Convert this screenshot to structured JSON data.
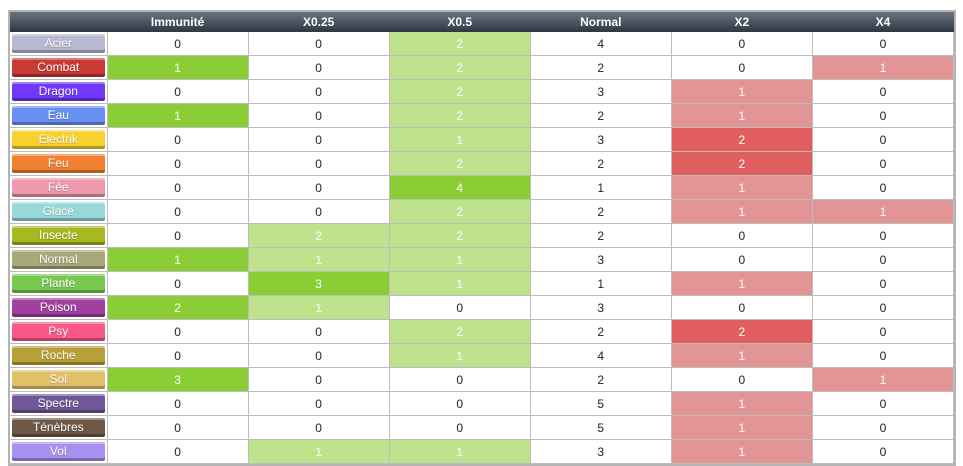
{
  "headers": [
    "",
    "Immunité",
    "X0.25",
    "X0.5",
    "Normal",
    "X2",
    "X4"
  ],
  "colors": {
    "white": "#ffffff",
    "light_green": "#bfe38c",
    "dark_green": "#8bcd35",
    "light_red": "#e29594",
    "dark_red": "#e05e5e"
  },
  "rows": [
    {
      "type": "Acier",
      "color": "#b8b8d0",
      "values": [
        "0",
        "0",
        "2",
        "4",
        "0",
        "0"
      ],
      "fills": [
        "white",
        "white",
        "light_green",
        "white",
        "white",
        "white"
      ]
    },
    {
      "type": "Combat",
      "color": "#c83a32",
      "values": [
        "1",
        "0",
        "2",
        "2",
        "0",
        "1"
      ],
      "fills": [
        "dark_green",
        "white",
        "light_green",
        "white",
        "white",
        "light_red"
      ]
    },
    {
      "type": "Dragon",
      "color": "#7038f8",
      "values": [
        "0",
        "0",
        "2",
        "3",
        "1",
        "0"
      ],
      "fills": [
        "white",
        "white",
        "light_green",
        "white",
        "light_red",
        "white"
      ]
    },
    {
      "type": "Eau",
      "color": "#6890f0",
      "values": [
        "1",
        "0",
        "2",
        "2",
        "1",
        "0"
      ],
      "fills": [
        "dark_green",
        "white",
        "light_green",
        "white",
        "light_red",
        "white"
      ]
    },
    {
      "type": "Electrik",
      "color": "#f8d030",
      "values": [
        "0",
        "0",
        "1",
        "3",
        "2",
        "0"
      ],
      "fills": [
        "white",
        "white",
        "light_green",
        "white",
        "dark_red",
        "white"
      ]
    },
    {
      "type": "Feu",
      "color": "#f08030",
      "values": [
        "0",
        "0",
        "2",
        "2",
        "2",
        "0"
      ],
      "fills": [
        "white",
        "white",
        "light_green",
        "white",
        "dark_red",
        "white"
      ]
    },
    {
      "type": "Fée",
      "color": "#ee99ac",
      "values": [
        "0",
        "0",
        "4",
        "1",
        "1",
        "0"
      ],
      "fills": [
        "white",
        "white",
        "dark_green",
        "white",
        "light_red",
        "white"
      ]
    },
    {
      "type": "Glace",
      "color": "#98d8d8",
      "values": [
        "0",
        "0",
        "2",
        "2",
        "1",
        "1"
      ],
      "fills": [
        "white",
        "white",
        "light_green",
        "white",
        "light_red",
        "light_red"
      ]
    },
    {
      "type": "Insecte",
      "color": "#a8b820",
      "values": [
        "0",
        "2",
        "2",
        "2",
        "0",
        "0"
      ],
      "fills": [
        "white",
        "light_green",
        "light_green",
        "white",
        "white",
        "white"
      ]
    },
    {
      "type": "Normal",
      "color": "#a8a878",
      "values": [
        "1",
        "1",
        "1",
        "3",
        "0",
        "0"
      ],
      "fills": [
        "dark_green",
        "light_green",
        "light_green",
        "white",
        "white",
        "white"
      ]
    },
    {
      "type": "Plante",
      "color": "#78c850",
      "values": [
        "0",
        "3",
        "1",
        "1",
        "1",
        "0"
      ],
      "fills": [
        "white",
        "dark_green",
        "light_green",
        "white",
        "light_red",
        "white"
      ]
    },
    {
      "type": "Poison",
      "color": "#a040a0",
      "values": [
        "2",
        "1",
        "0",
        "3",
        "0",
        "0"
      ],
      "fills": [
        "dark_green",
        "light_green",
        "white",
        "white",
        "white",
        "white"
      ]
    },
    {
      "type": "Psy",
      "color": "#f85888",
      "values": [
        "0",
        "0",
        "2",
        "2",
        "2",
        "0"
      ],
      "fills": [
        "white",
        "white",
        "light_green",
        "white",
        "dark_red",
        "white"
      ]
    },
    {
      "type": "Roche",
      "color": "#b8a038",
      "values": [
        "0",
        "0",
        "1",
        "4",
        "1",
        "0"
      ],
      "fills": [
        "white",
        "white",
        "light_green",
        "white",
        "light_red",
        "white"
      ]
    },
    {
      "type": "Sol",
      "color": "#e0c068",
      "values": [
        "3",
        "0",
        "0",
        "2",
        "0",
        "1"
      ],
      "fills": [
        "dark_green",
        "white",
        "white",
        "white",
        "white",
        "light_red"
      ]
    },
    {
      "type": "Spectre",
      "color": "#705898",
      "values": [
        "0",
        "0",
        "0",
        "5",
        "1",
        "0"
      ],
      "fills": [
        "white",
        "white",
        "white",
        "white",
        "light_red",
        "white"
      ]
    },
    {
      "type": "Ténèbres",
      "color": "#705848",
      "values": [
        "0",
        "0",
        "0",
        "5",
        "1",
        "0"
      ],
      "fills": [
        "white",
        "white",
        "white",
        "white",
        "light_red",
        "white"
      ]
    },
    {
      "type": "Vol",
      "color": "#a890f0",
      "values": [
        "0",
        "1",
        "1",
        "3",
        "1",
        "0"
      ],
      "fills": [
        "white",
        "light_green",
        "light_green",
        "white",
        "light_red",
        "white"
      ]
    }
  ]
}
